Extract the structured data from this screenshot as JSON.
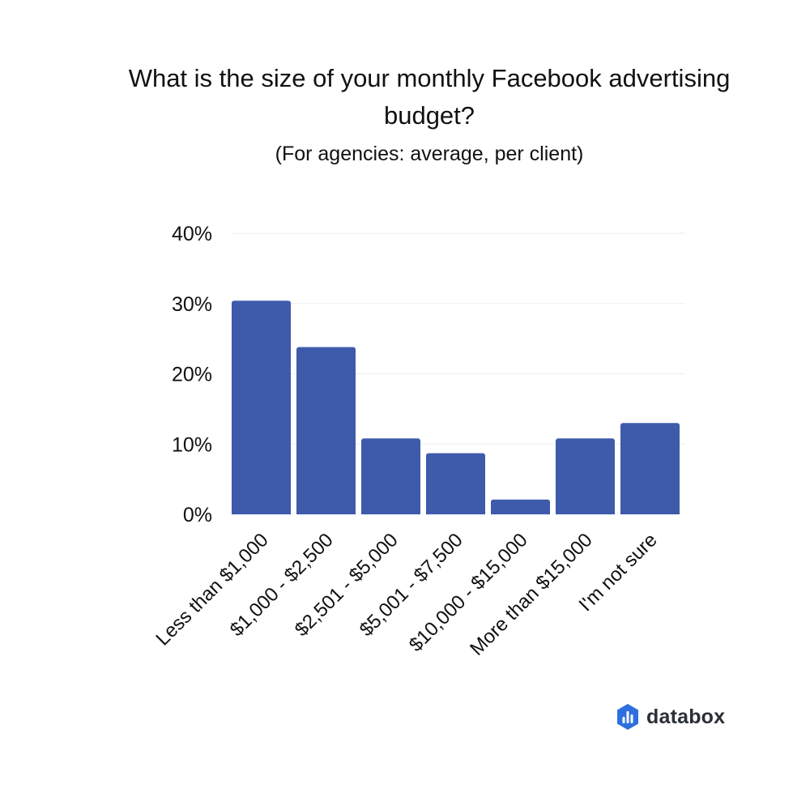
{
  "chart_data": {
    "type": "bar",
    "title": "What is the size of your monthly Facebook advertising budget?",
    "subtitle": "(For agencies: average, per client)",
    "categories": [
      "Less than $1,000",
      "$1,000 - $2,500",
      "$2,501 - $5,000",
      "$5,001 - $7,500",
      "$10,000 - $15,000",
      "More than $15,000",
      "I'm not sure"
    ],
    "values": [
      30.4,
      23.8,
      10.8,
      8.7,
      2.1,
      10.8,
      13.0
    ],
    "y_ticks": [
      "0%",
      "10%",
      "20%",
      "30%",
      "40%"
    ],
    "ylim": [
      0,
      40
    ],
    "grid": true,
    "bar_color": "#3e5aab",
    "grid_color": "#eeeeee"
  },
  "brand": {
    "name": "databox",
    "logo_colors": [
      "#2e6fe0",
      "#ffffff"
    ]
  }
}
